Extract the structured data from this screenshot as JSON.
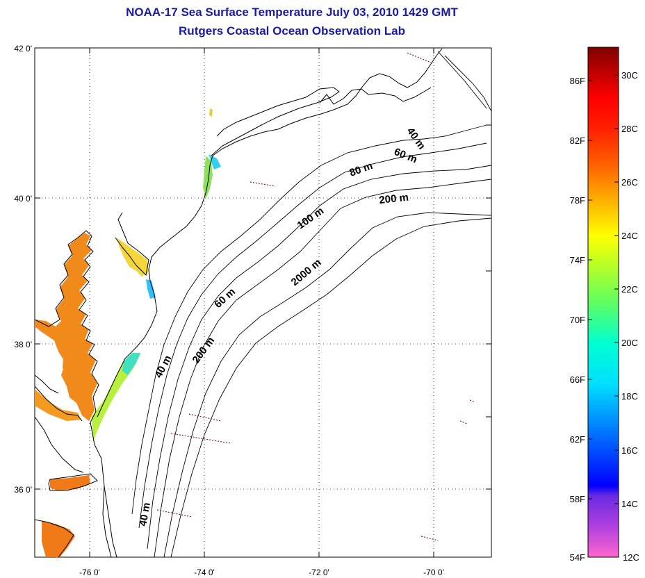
{
  "header": {
    "title": "NOAA-17 Sea Surface Temperature July 03, 2010 1429 GMT",
    "subtitle": "Rutgers Coastal Ocean Observation Lab"
  },
  "map": {
    "lat_ticks": [
      "42 0'",
      "40 0'",
      "38 0'",
      "36 0'"
    ],
    "lon_ticks": [
      "-76 0'",
      "-74 0'",
      "-72 0'",
      "-70 0'"
    ],
    "depth_labels": [
      "40 m",
      "60 m",
      "80 m",
      "200 m",
      "100 m",
      "2000 m",
      "60 m",
      "200 m",
      "40 m",
      "40 m"
    ]
  },
  "colorbar": {
    "fahrenheit_labels": [
      "86F",
      "82F",
      "78F",
      "74F",
      "70F",
      "66F",
      "62F",
      "58F",
      "54F"
    ],
    "celsius_labels": [
      "30C",
      "28C",
      "26C",
      "24C",
      "22C",
      "20C",
      "18C",
      "16C",
      "14C",
      "12C"
    ],
    "colors": [
      "#ff66cc",
      "#c040e0",
      "#8a2be2",
      "#0000ff",
      "#0070ff",
      "#00c0ff",
      "#00ffe0",
      "#40ff80",
      "#b0ff30",
      "#ffff00",
      "#ffc000",
      "#ff7000",
      "#ff3000",
      "#ff0000",
      "#c00000",
      "#800000"
    ]
  },
  "colors": {
    "title": "#1a1aa6",
    "land_outline": "#000000",
    "bay_water": "#f08a1a"
  }
}
